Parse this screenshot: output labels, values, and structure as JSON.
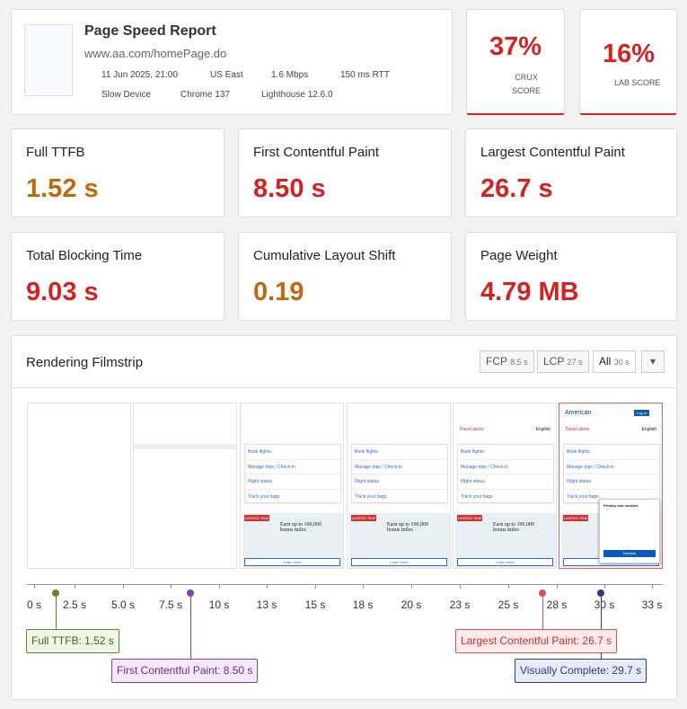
{
  "header": {
    "title": "Page Speed Report",
    "url": "www.aa.com/homePage.do",
    "meta": [
      "11 Jun 2025, 21:00",
      "US East",
      "1.6 Mbps",
      "150 ms RTT",
      "Slow Device",
      "Chrome 137",
      "Lighthouse 12.6.0"
    ]
  },
  "scores": [
    {
      "value": "37%",
      "label": "CRUX SCORE"
    },
    {
      "value": "16%",
      "label": "LAB SCORE"
    }
  ],
  "metrics": [
    {
      "label": "Full TTFB",
      "value": "1.52 s"
    },
    {
      "label": "First Contentful Paint",
      "value": "8.50 s"
    },
    {
      "label": "Largest Contentful Paint",
      "value": "26.7 s"
    },
    {
      "label": "Total Blocking Time",
      "value": "9.03 s"
    },
    {
      "label": "Cumulative Layout Shift",
      "value": "0.19"
    },
    {
      "label": "Page Weight",
      "value": "4.79 MB"
    }
  ],
  "filmstrip": {
    "title": "Rendering Filmstrip",
    "tabs": [
      {
        "label": "FCP",
        "time": "8.5 s"
      },
      {
        "label": "LCP",
        "time": "27 s"
      },
      {
        "label": "All",
        "time": "30 s"
      }
    ],
    "thumbnail": {
      "brand": "American",
      "login": "Log in",
      "alerts": "Travel alerts",
      "language": "English",
      "menu": [
        "Book flights",
        "Manage trips / Check-in",
        "Flight status",
        "Track your bags"
      ],
      "badge": "LIMITED TIME",
      "promo": "Earn up to 100,000 bonus miles",
      "cta": "Learn more",
      "privacy": "Privacy and cookies",
      "dismiss": "Dismiss"
    },
    "ticks": [
      "0 s",
      "2.5 s",
      "5.0 s",
      "7.5 s",
      "10 s",
      "13 s",
      "15 s",
      "18 s",
      "20 s",
      "23 s",
      "25 s",
      "28 s",
      "30 s",
      "33 s"
    ],
    "markers": [
      "Full TTFB: 1.52 s",
      "First Contentful Paint: 8.50 s",
      "Largest Contentful Paint: 26.7 s",
      "Visually Complete: 29.7 s"
    ]
  }
}
